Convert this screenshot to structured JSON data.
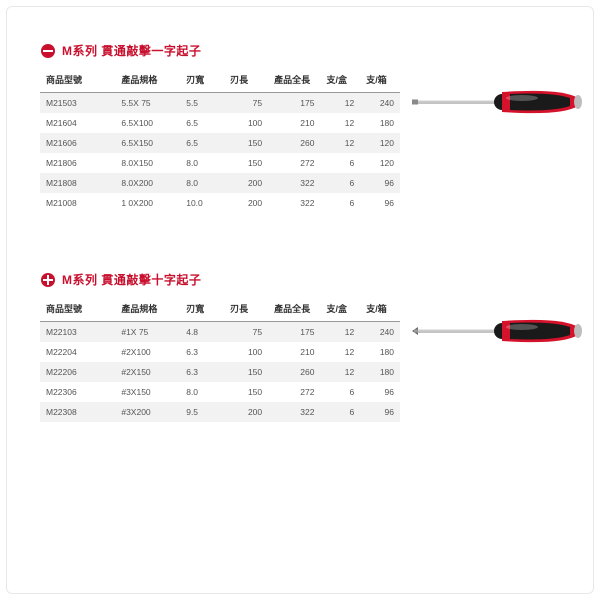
{
  "colors": {
    "accent": "#c8102e",
    "header_border": "#999999",
    "row_alt_bg": "#f2f2f2",
    "text": "#4a4a4a",
    "handle_red": "#d4122b",
    "handle_black": "#1a1a1a",
    "shaft": "#c8c8c8"
  },
  "sections": [
    {
      "icon": "flat",
      "title": "M系列 貫通敲擊一字起子",
      "columns": [
        "商品型號",
        "產品規格",
        "刃寬",
        "刃長",
        "產品全長",
        "支/盒",
        "支/箱"
      ],
      "rows": [
        [
          "M21503",
          "5.5X  75",
          "5.5",
          "75",
          "175",
          "12",
          "240"
        ],
        [
          "M21604",
          "6.5X100",
          "6.5",
          "100",
          "210",
          "12",
          "180"
        ],
        [
          "M21606",
          "6.5X150",
          "6.5",
          "150",
          "260",
          "12",
          "120"
        ],
        [
          "M21806",
          "8.0X150",
          "8.0",
          "150",
          "272",
          "6",
          "120"
        ],
        [
          "M21808",
          "8.0X200",
          "8.0",
          "200",
          "322",
          "6",
          "96"
        ],
        [
          "M21008",
          "1 0X200",
          "10.0",
          "200",
          "322",
          "6",
          "96"
        ]
      ]
    },
    {
      "icon": "phillips",
      "title": "M系列 貫通敲擊十字起子",
      "columns": [
        "商品型號",
        "產品規格",
        "刃寬",
        "刃長",
        "產品全長",
        "支/盒",
        "支/箱"
      ],
      "rows": [
        [
          "M22103",
          "#1X  75",
          "4.8",
          "75",
          "175",
          "12",
          "240"
        ],
        [
          "M22204",
          "#2X100",
          "6.3",
          "100",
          "210",
          "12",
          "180"
        ],
        [
          "M22206",
          "#2X150",
          "6.3",
          "150",
          "260",
          "12",
          "180"
        ],
        [
          "M22306",
          "#3X150",
          "8.0",
          "150",
          "272",
          "6",
          "96"
        ],
        [
          "M22308",
          "#3X200",
          "9.5",
          "200",
          "322",
          "6",
          "96"
        ]
      ]
    }
  ]
}
